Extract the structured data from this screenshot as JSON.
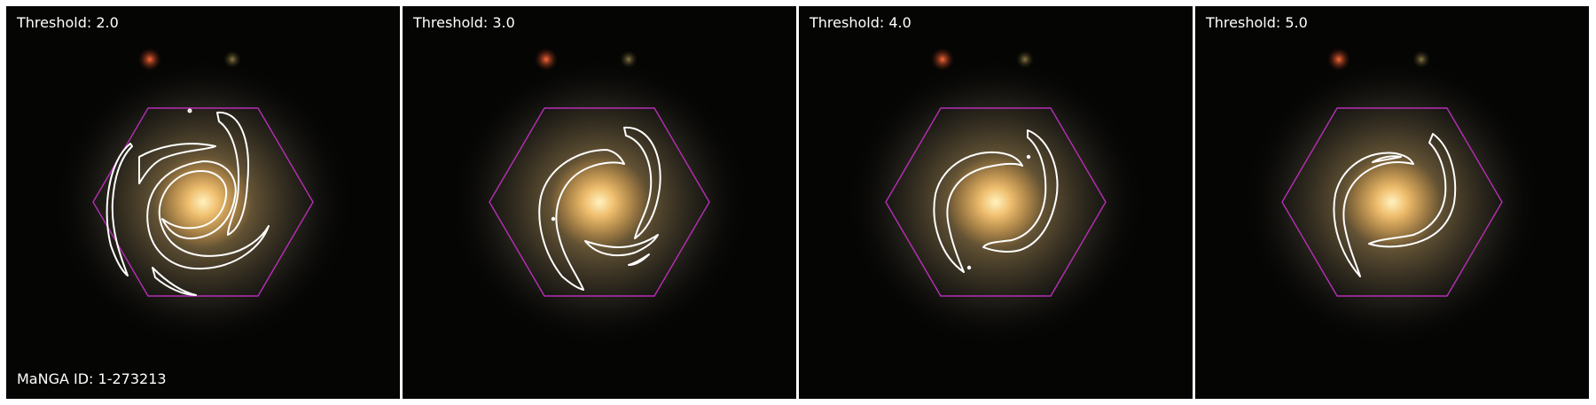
{
  "figure": {
    "panels": [
      {
        "title": "Threshold: 2.0"
      },
      {
        "title": "Threshold: 3.0"
      },
      {
        "title": "Threshold: 4.0"
      },
      {
        "title": "Threshold: 5.0"
      }
    ],
    "manga_id": "MaNGA ID: 1-273213"
  },
  "colors": {
    "hexagon": "#b62fb6",
    "contour": "#ffffff",
    "background": "#050504",
    "galaxy_core": "#f6d07a",
    "star_red": "#e0532d",
    "star_yellow": "#7a6a3c"
  },
  "icons": {
    "ifu_footprint": "hexagon-outline",
    "contour": "spiral-arm-contour"
  }
}
